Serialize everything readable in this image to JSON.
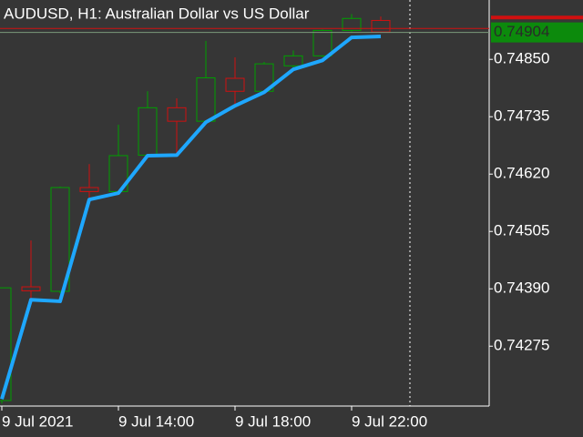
{
  "chart_data": {
    "type": "candlestick",
    "title": "AUDUSD, H1:  Australian Dollar vs US Dollar",
    "categories": [
      "9 Jul 2021",
      null,
      null,
      null,
      "9 Jul 14:00",
      null,
      null,
      null,
      "9 Jul 18:00",
      null,
      null,
      null,
      "9 Jul 22:00",
      null
    ],
    "open": [
      0.74166,
      0.74394,
      0.74385,
      0.74593,
      0.74585,
      0.74658,
      0.74753,
      0.74726,
      0.74812,
      0.74786,
      0.74837,
      0.74857,
      0.74908,
      0.74928
    ],
    "high": [
      0.74392,
      0.74487,
      0.74595,
      0.7464,
      0.74719,
      0.74786,
      0.74772,
      0.74887,
      0.74854,
      0.74845,
      0.74868,
      0.7491,
      0.74941,
      0.74936
    ],
    "low": [
      0.7416,
      0.74366,
      0.74381,
      0.74563,
      0.74582,
      0.74655,
      0.74662,
      0.74722,
      0.74753,
      0.74782,
      0.74832,
      0.74855,
      0.74905,
      0.74903
    ],
    "close": [
      0.74392,
      0.74386,
      0.74593,
      0.74585,
      0.74657,
      0.74753,
      0.74726,
      0.74813,
      0.74786,
      0.74841,
      0.74857,
      0.74908,
      0.74932,
      0.74905
    ],
    "up_color": "#00a000",
    "down_color": "#d01010",
    "ma": {
      "color": "#1ea7ff",
      "values": [
        0.74169,
        0.74368,
        0.74365,
        0.74569,
        0.74582,
        0.74657,
        0.74658,
        0.74724,
        0.74757,
        0.74784,
        0.7483,
        0.74848,
        0.74894,
        0.74896
      ]
    },
    "ylim": [
      0.74155,
      0.74969
    ],
    "yticks": [
      {
        "value": 0.7485,
        "label": "0.74850"
      },
      0.74735,
      {
        "value": 0.7462,
        "label": "0.74620"
      },
      0.74505,
      {
        "value": 0.7439,
        "label": "0.74390"
      },
      0.74275
    ],
    "current_price": 0.74904,
    "ask_price": 0.74912
  }
}
